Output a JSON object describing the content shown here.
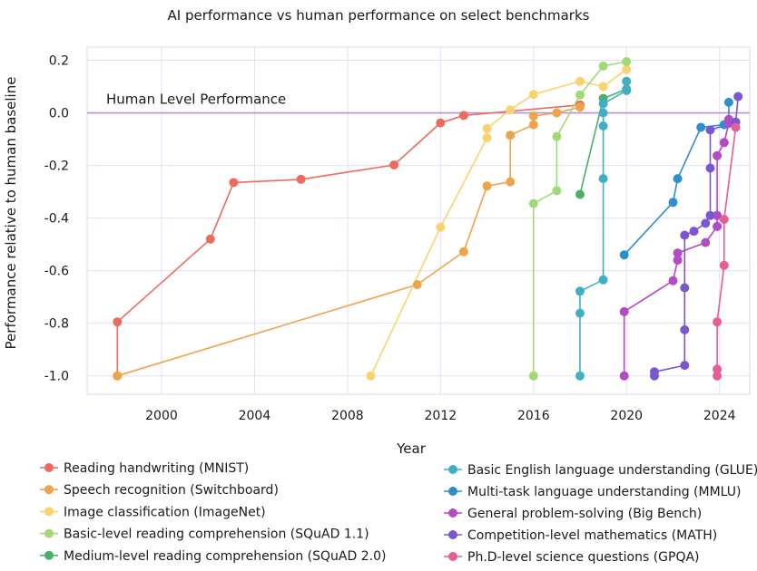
{
  "chart_data": {
    "type": "line",
    "title": "AI performance vs human performance on select benchmarks",
    "xlabel": "Year",
    "ylabel": "Performance relative to human baseline",
    "xlim": [
      1996.8,
      2025.3
    ],
    "ylim": [
      -1.07,
      0.25
    ],
    "xticks": [
      {
        "value": 2000,
        "label": "2000"
      },
      {
        "value": 2004,
        "label": "2004"
      },
      {
        "value": 2008,
        "label": "2008"
      },
      {
        "value": 2012,
        "label": "2012"
      },
      {
        "value": 2016,
        "label": "2016"
      },
      {
        "value": 2020,
        "label": "2020"
      },
      {
        "value": 2024,
        "label": "2024"
      }
    ],
    "yticks": [
      {
        "value": 0.2,
        "label": "0.2"
      },
      {
        "value": 0.0,
        "label": "0.0"
      },
      {
        "value": -0.2,
        "label": "-0.2"
      },
      {
        "value": -0.4,
        "label": "-0.4"
      },
      {
        "value": -0.6,
        "label": "-0.6"
      },
      {
        "value": -0.8,
        "label": "-0.8"
      },
      {
        "value": -1.0,
        "label": "-1.0"
      }
    ],
    "grid": true,
    "reference_line": {
      "y": 0.0,
      "label": "Human Level Performance",
      "color": "#b78fe0"
    },
    "series": [
      {
        "name": "Reading handwriting (MNIST)",
        "color": "#ec6b5e",
        "points": [
          [
            1998.1,
            -1.0
          ],
          [
            1998.1,
            -0.795
          ],
          [
            2002.1,
            -0.48
          ],
          [
            2003.1,
            -0.265
          ],
          [
            2006.0,
            -0.253
          ],
          [
            2010.0,
            -0.198
          ],
          [
            2012.0,
            -0.038
          ],
          [
            2013.0,
            -0.01
          ],
          [
            2018.0,
            0.03
          ]
        ]
      },
      {
        "name": "Speech recognition (Switchboard)",
        "color": "#eea44a",
        "points": [
          [
            1998.1,
            -1.0
          ],
          [
            2011.0,
            -0.653
          ],
          [
            2013.0,
            -0.528
          ],
          [
            2014.0,
            -0.278
          ],
          [
            2015.0,
            -0.262
          ],
          [
            2015.0,
            -0.085
          ],
          [
            2016.0,
            -0.045
          ],
          [
            2016.0,
            -0.012
          ],
          [
            2017.0,
            0.0
          ],
          [
            2018.0,
            0.022
          ]
        ]
      },
      {
        "name": "Image classification (ImageNet)",
        "color": "#f9d36f",
        "points": [
          [
            2009.0,
            -1.0
          ],
          [
            2012.0,
            -0.435
          ],
          [
            2014.0,
            -0.095
          ],
          [
            2014.0,
            -0.06
          ],
          [
            2015.0,
            0.012
          ],
          [
            2016.0,
            0.07
          ],
          [
            2018.0,
            0.12
          ],
          [
            2019.0,
            0.1
          ],
          [
            2020.0,
            0.165
          ]
        ]
      },
      {
        "name": "Basic-level reading comprehension (SQuAD 1.1)",
        "color": "#a1d977",
        "points": [
          [
            2016.0,
            -1.0
          ],
          [
            2016.0,
            -0.345
          ],
          [
            2017.0,
            -0.296
          ],
          [
            2017.0,
            -0.09
          ],
          [
            2018.0,
            0.068
          ],
          [
            2019.0,
            0.178
          ],
          [
            2020.0,
            0.195
          ]
        ]
      },
      {
        "name": "Medium-level reading comprehension (SQuAD 2.0)",
        "color": "#4caf6a",
        "points": [
          [
            2018.0,
            -0.31
          ],
          [
            2019.0,
            0.055
          ],
          [
            2020.0,
            0.09
          ]
        ]
      },
      {
        "name": "Basic English language understanding (GLUE)",
        "color": "#3fb0c4",
        "points": [
          [
            2018.0,
            -1.0
          ],
          [
            2018.0,
            -0.762
          ],
          [
            2018.0,
            -0.678
          ],
          [
            2019.0,
            -0.635
          ],
          [
            2019.0,
            -0.25
          ],
          [
            2019.0,
            -0.05
          ],
          [
            2019.0,
            0.0
          ],
          [
            2019.0,
            0.035
          ],
          [
            2020.0,
            0.085
          ],
          [
            2020.0,
            0.12
          ]
        ]
      },
      {
        "name": "Multi-task language understanding (MMLU)",
        "color": "#2e8ece",
        "points": [
          [
            2019.9,
            -0.54
          ],
          [
            2022.0,
            -0.34
          ],
          [
            2022.2,
            -0.25
          ],
          [
            2023.2,
            -0.055
          ],
          [
            2024.2,
            -0.045
          ],
          [
            2024.4,
            -0.04
          ],
          [
            2024.4,
            0.04
          ]
        ]
      },
      {
        "name": "General problem-solving (Big Bench)",
        "color": "#b34ac6",
        "points": [
          [
            2019.9,
            -1.0
          ],
          [
            2019.9,
            -0.756
          ],
          [
            2022.0,
            -0.638
          ],
          [
            2022.2,
            -0.56
          ],
          [
            2022.2,
            -0.533
          ],
          [
            2023.4,
            -0.493
          ],
          [
            2023.9,
            -0.432
          ],
          [
            2023.9,
            -0.39
          ],
          [
            2023.9,
            -0.163
          ],
          [
            2024.2,
            -0.113
          ],
          [
            2024.4,
            -0.04
          ],
          [
            2024.4,
            -0.025
          ]
        ]
      },
      {
        "name": "Competition-level mathematics (MATH)",
        "color": "#7b56d4",
        "points": [
          [
            2021.2,
            -1.0
          ],
          [
            2021.2,
            -0.985
          ],
          [
            2022.5,
            -0.96
          ],
          [
            2022.5,
            -0.825
          ],
          [
            2022.5,
            -0.665
          ],
          [
            2022.5,
            -0.465
          ],
          [
            2022.9,
            -0.45
          ],
          [
            2023.4,
            -0.42
          ],
          [
            2023.6,
            -0.39
          ],
          [
            2023.6,
            -0.21
          ],
          [
            2023.6,
            -0.065
          ],
          [
            2024.7,
            -0.035
          ],
          [
            2024.8,
            0.062
          ]
        ]
      },
      {
        "name": "Ph.D-level science questions (GPQA)",
        "color": "#e35f96",
        "points": [
          [
            2023.9,
            -1.0
          ],
          [
            2023.9,
            -0.975
          ],
          [
            2023.9,
            -0.795
          ],
          [
            2024.2,
            -0.58
          ],
          [
            2024.2,
            -0.405
          ],
          [
            2024.7,
            -0.055
          ]
        ]
      }
    ]
  }
}
